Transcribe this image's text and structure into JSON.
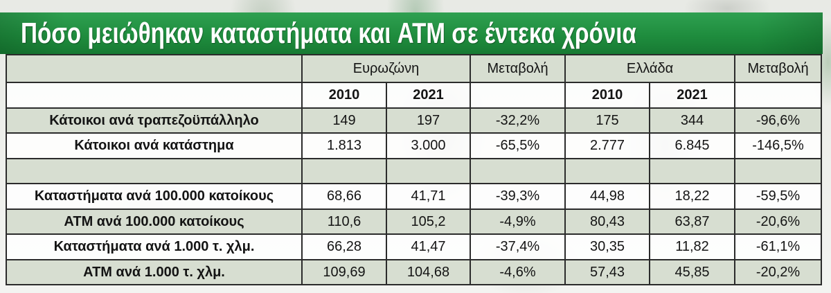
{
  "chart_data": {
    "type": "table",
    "title": "Πόσο μειώθηκαν καταστήματα και ATM σε έντεκα χρόνια",
    "header": {
      "groups": [
        {
          "label": "Ευρωζώνη",
          "years": [
            "2010",
            "2021"
          ]
        },
        {
          "label": "Μεταβολή"
        },
        {
          "label": "Ελλάδα",
          "years": [
            "2010",
            "2021"
          ]
        },
        {
          "label": "Μεταβολή"
        }
      ]
    },
    "rows": [
      {
        "label": "Κάτοικοι ανά τραπεζοϋπάλληλο",
        "cells": [
          "149",
          "197",
          "-32,2%",
          "175",
          "344",
          "-96,6%"
        ]
      },
      {
        "label": "Κάτοικοι ανά κατάστημα",
        "cells": [
          "1.813",
          "3.000",
          "-65,5%",
          "2.777",
          "6.845",
          "-146,5%"
        ]
      },
      {
        "label": "Καταστήματα ανά 100.000 κατοίκους",
        "cells": [
          "68,66",
          "41,71",
          "-39,3%",
          "44,98",
          "18,22",
          "-59,5%"
        ]
      },
      {
        "label": "ATM ανά 100.000 κατοίκους",
        "cells": [
          "110,6",
          "105,2",
          "-4,9%",
          "80,43",
          "63,87",
          "-20,6%"
        ]
      },
      {
        "label": "Καταστήματα ανά 1.000 τ. χλμ.",
        "cells": [
          "66,28",
          "41,47",
          "-37,4%",
          "30,35",
          "11,82",
          "-61,1%"
        ]
      },
      {
        "label": "ATM ανά 1.000 τ. χλμ.",
        "cells": [
          "109,69",
          "104,68",
          "-4,6%",
          "57,43",
          "45,85",
          "-20,2%"
        ]
      }
    ]
  },
  "colors": {
    "banner_green": "#1f8d3e",
    "title_text": "#ffffff",
    "shaded_row": "#d7ded1",
    "grid_lines": "#2b2b2b"
  }
}
